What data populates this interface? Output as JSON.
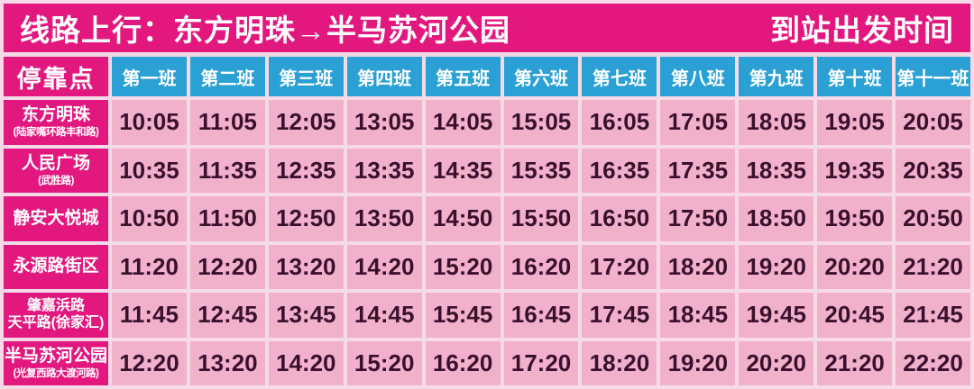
{
  "banner": {
    "title": "线路上行：东方明珠→半马苏河公园",
    "right_label": "到站出发时间"
  },
  "table": {
    "stop_header": "停靠点",
    "trip_headers": [
      "第一班",
      "第二班",
      "第三班",
      "第四班",
      "第五班",
      "第六班",
      "第七班",
      "第八班",
      "第九班",
      "第十班",
      "第十一班"
    ],
    "rows": [
      {
        "station_lines": [
          "东方明珠"
        ],
        "sub": "(陆家嘴环路丰和路)",
        "times": [
          "10:05",
          "11:05",
          "12:05",
          "13:05",
          "14:05",
          "15:05",
          "16:05",
          "17:05",
          "18:05",
          "19:05",
          "20:05"
        ]
      },
      {
        "station_lines": [
          "人民广场"
        ],
        "sub": "(武胜路)",
        "times": [
          "10:35",
          "11:35",
          "12:35",
          "13:35",
          "14:35",
          "15:35",
          "16:35",
          "17:35",
          "18:35",
          "19:35",
          "20:35"
        ]
      },
      {
        "station_lines": [
          "静安大悦城"
        ],
        "sub": "",
        "times": [
          "10:50",
          "11:50",
          "12:50",
          "13:50",
          "14:50",
          "15:50",
          "16:50",
          "17:50",
          "18:50",
          "19:50",
          "20:50"
        ]
      },
      {
        "station_lines": [
          "永源路街区"
        ],
        "sub": "",
        "times": [
          "11:20",
          "12:20",
          "13:20",
          "14:20",
          "15:20",
          "16:20",
          "17:20",
          "18:20",
          "19:20",
          "20:20",
          "21:20"
        ]
      },
      {
        "station_lines": [
          "肇嘉浜路",
          "天平路(徐家汇)"
        ],
        "sub": "",
        "times": [
          "11:45",
          "12:45",
          "13:45",
          "14:45",
          "15:45",
          "16:45",
          "17:45",
          "18:45",
          "19:45",
          "20:45",
          "21:45"
        ]
      },
      {
        "station_lines": [
          "半马苏河公园"
        ],
        "sub": "(光复西路大渡河路)",
        "times": [
          "12:20",
          "13:20",
          "14:20",
          "15:20",
          "16:20",
          "17:20",
          "18:20",
          "19:20",
          "20:20",
          "21:20",
          "22:20"
        ]
      }
    ]
  },
  "colors": {
    "banner_bg": "#E2187F",
    "trip_header_bg": "#2AA0D4",
    "station_bg": "#E2187F",
    "time_cell_bg": "#F2B1CB",
    "time_text": "#3A102F",
    "page_bg": "#F6DBE7"
  }
}
